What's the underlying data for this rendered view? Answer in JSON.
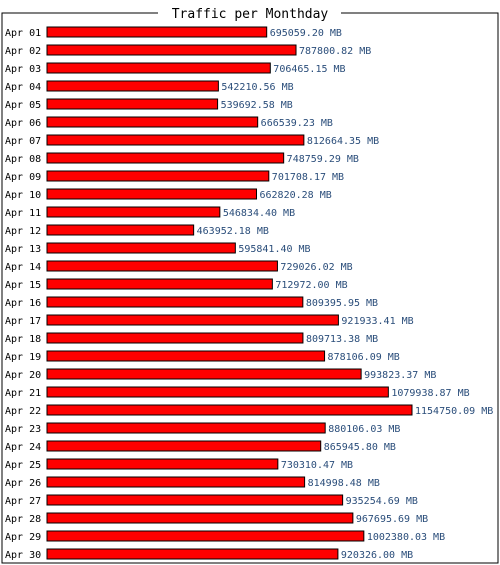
{
  "chart_data": {
    "type": "bar",
    "orientation": "horizontal",
    "title": "Traffic per Monthday",
    "unit": "MB",
    "categories": [
      "Apr 01",
      "Apr 02",
      "Apr 03",
      "Apr 04",
      "Apr 05",
      "Apr 06",
      "Apr 07",
      "Apr 08",
      "Apr 09",
      "Apr 10",
      "Apr 11",
      "Apr 12",
      "Apr 13",
      "Apr 14",
      "Apr 15",
      "Apr 16",
      "Apr 17",
      "Apr 18",
      "Apr 19",
      "Apr 20",
      "Apr 21",
      "Apr 22",
      "Apr 23",
      "Apr 24",
      "Apr 25",
      "Apr 26",
      "Apr 27",
      "Apr 28",
      "Apr 29",
      "Apr 30"
    ],
    "values": [
      695059.2,
      787800.82,
      706465.15,
      542210.56,
      539692.58,
      666539.23,
      812664.35,
      748759.29,
      701708.17,
      662820.28,
      546834.4,
      463952.18,
      595841.4,
      729026.02,
      712972.0,
      809395.95,
      921933.41,
      809713.38,
      878106.09,
      993823.37,
      1079938.87,
      1154750.09,
      880106.03,
      865945.8,
      730310.47,
      814998.48,
      935254.69,
      967695.69,
      1002380.03,
      920326.0
    ],
    "value_labels": [
      "695059.20 MB",
      "787800.82 MB",
      "706465.15 MB",
      "542210.56 MB",
      "539692.58 MB",
      "666539.23 MB",
      "812664.35 MB",
      "748759.29 MB",
      "701708.17 MB",
      "662820.28 MB",
      "546834.40 MB",
      "463952.18 MB",
      "595841.40 MB",
      "729026.02 MB",
      "712972.00 MB",
      "809395.95 MB",
      "921933.41 MB",
      "809713.38 MB",
      "878106.09 MB",
      "993823.37 MB",
      "1079938.87 MB",
      "1154750.09 MB",
      "880106.03 MB",
      "865945.80 MB",
      "730310.47 MB",
      "814998.48 MB",
      "935254.69 MB",
      "967695.69 MB",
      "1002380.03 MB",
      "920326.00 MB"
    ],
    "xlim": [
      0,
      1154750.09
    ],
    "grid": false,
    "legend": "none",
    "colors": {
      "bar_fill": "#ff0000",
      "bar_stroke": "#000000",
      "value_text": "#2a4d7a",
      "frame": "#000000"
    }
  }
}
